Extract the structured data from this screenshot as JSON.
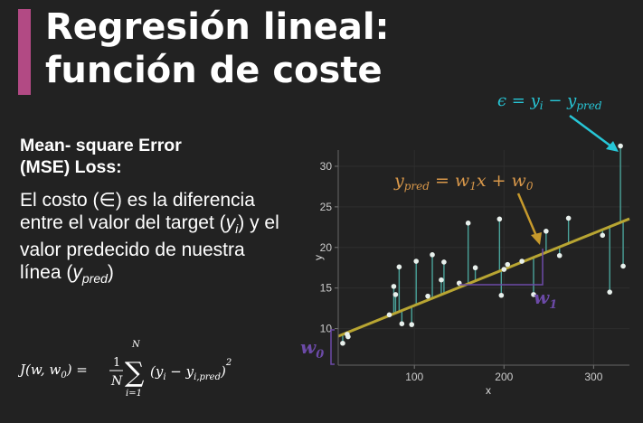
{
  "title": {
    "line1": "Regresión lineal:",
    "line2": "función de coste"
  },
  "colors": {
    "background": "#222222",
    "accent_bar": "#b24a84",
    "regression_line": "#b8a532",
    "residual": "#4aa39a",
    "error_label": "#27c6d6",
    "ypred_label": "#d9984a",
    "arrow_brown": "#c79a2c",
    "weight_label": "#6c4aa8",
    "point": "#e8f0ec"
  },
  "subtitle": {
    "line1": "Mean- square Error",
    "line2": "(MSE) Loss:"
  },
  "body": {
    "t1": "El costo (",
    "symbol": "∈",
    "t2": ") es la diferencia entre el valor del target (",
    "y": "y",
    "i": "i",
    "t3": ") y el valor predecido de nuestra línea (",
    "ypred_y": "y",
    "pred": "pred",
    "t4": ")"
  },
  "formula": {
    "lhs": "J(w, w",
    "lhs_sub": "0",
    "lhs_end": ") =",
    "frac_num": "1",
    "frac_den": "N",
    "sum_top": "N",
    "sum_bottom": "i=1",
    "term_open": "(y",
    "term_i": "i",
    "term_minus": " − y",
    "term_ipred": "i,pred",
    "term_close": ")",
    "power": "2"
  },
  "annotations": {
    "epsilon": {
      "eps": "ϵ = y",
      "sub_i": "i",
      "minus": " − y",
      "sub_pred": "pred"
    },
    "ypred": {
      "y": "y",
      "sub_pred": "pred",
      "eq": " = w",
      "sub1": "1",
      "x": "x + w",
      "sub0": "0"
    },
    "w1": {
      "w": "w",
      "sub": "1"
    },
    "w0": {
      "w": "w",
      "sub": "0"
    }
  },
  "chart_data": {
    "type": "scatter",
    "xlabel": "x",
    "ylabel": "y",
    "xlim": [
      15,
      340
    ],
    "ylim": [
      5.5,
      32
    ],
    "xticks": [
      100,
      200,
      300
    ],
    "yticks": [
      10,
      15,
      20,
      25,
      30
    ],
    "regression": {
      "intercept": 8.4,
      "slope": 0.0445
    },
    "points": [
      {
        "x": 20,
        "y": 8.2
      },
      {
        "x": 25,
        "y": 9.3
      },
      {
        "x": 26,
        "y": 9.0
      },
      {
        "x": 72,
        "y": 11.7
      },
      {
        "x": 77,
        "y": 15.2
      },
      {
        "x": 79,
        "y": 14.2
      },
      {
        "x": 83,
        "y": 17.6
      },
      {
        "x": 86,
        "y": 10.6
      },
      {
        "x": 97,
        "y": 10.5
      },
      {
        "x": 102,
        "y": 18.3
      },
      {
        "x": 115,
        "y": 14.0
      },
      {
        "x": 120,
        "y": 19.1
      },
      {
        "x": 130,
        "y": 16.0
      },
      {
        "x": 133,
        "y": 18.2
      },
      {
        "x": 150,
        "y": 15.6
      },
      {
        "x": 160,
        "y": 23.0
      },
      {
        "x": 168,
        "y": 17.5
      },
      {
        "x": 195,
        "y": 23.5
      },
      {
        "x": 197,
        "y": 14.1
      },
      {
        "x": 200,
        "y": 17.3
      },
      {
        "x": 204,
        "y": 17.9
      },
      {
        "x": 220,
        "y": 18.3
      },
      {
        "x": 233,
        "y": 14.2
      },
      {
        "x": 247,
        "y": 22.0
      },
      {
        "x": 262,
        "y": 19.0
      },
      {
        "x": 272,
        "y": 23.6
      },
      {
        "x": 310,
        "y": 21.5
      },
      {
        "x": 318,
        "y": 14.5
      },
      {
        "x": 330,
        "y": 32.5
      },
      {
        "x": 333,
        "y": 17.7
      }
    ]
  }
}
